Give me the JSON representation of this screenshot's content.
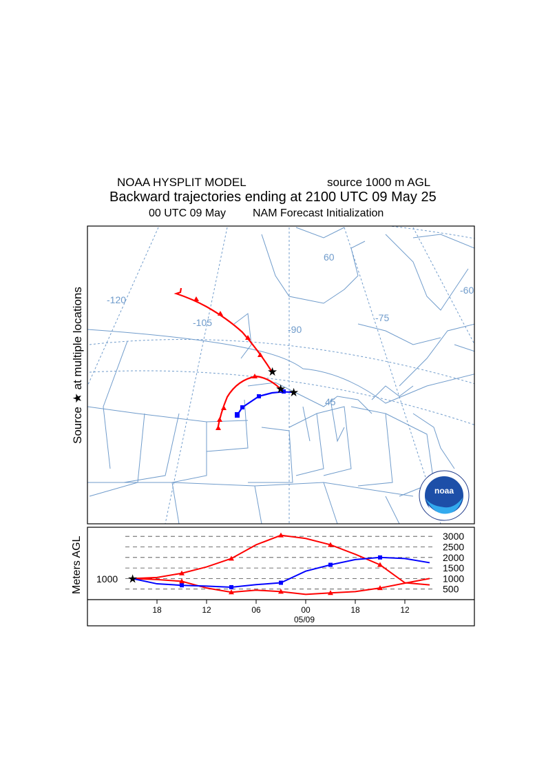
{
  "header": {
    "model_name": "NOAA HYSPLIT MODEL",
    "source_label": "source 1000 m AGL",
    "title": "Backward trajectories ending at 2100 UTC 09 May 25",
    "init_left": "00 UTC 09 May",
    "init_right": "NAM   Forecast Initialization"
  },
  "map": {
    "side_label": "Source ★  at multiple locations",
    "longitude_labels": [
      "-120",
      "-105",
      "-90",
      "-75",
      "-60"
    ],
    "latitude_labels": [
      "60",
      "45"
    ],
    "logo_text": "noaa",
    "colors": {
      "map_lines": "#6f9bcb",
      "trajectory_red": "#ff0000",
      "trajectory_blue": "#0000ff"
    }
  },
  "chart_data": {
    "type": "line",
    "title": "Backward trajectories ending at 2100 UTC 09 May 25",
    "ylabel": "Meters AGL",
    "xlabel": "05/09",
    "x_tick_labels": [
      "18",
      "12",
      "06",
      "00",
      "18",
      "12"
    ],
    "x_hours_back": [
      -3,
      -9,
      -15,
      -21,
      -27,
      -33
    ],
    "y_tick_labels": [
      "3000",
      "2500",
      "2000",
      "1500",
      "1000",
      "500"
    ],
    "y_ticks": [
      3000,
      2500,
      2000,
      1500,
      1000,
      500
    ],
    "ylim": [
      0,
      3200
    ],
    "xlim": [
      0,
      -36
    ],
    "source_height_label": "1000",
    "source_height": 1000,
    "series": [
      {
        "color": "#ff0000",
        "marker": "triangle",
        "x": [
          0,
          -3,
          -6,
          -9,
          -12,
          -15,
          -18,
          -21,
          -24,
          -27,
          -30,
          -33,
          -36
        ],
        "y": [
          1000,
          1050,
          1250,
          1550,
          1950,
          2600,
          3050,
          2900,
          2600,
          2150,
          1650,
          800,
          700
        ]
      },
      {
        "color": "#ff0000",
        "marker": "triangle",
        "x": [
          0,
          -3,
          -6,
          -9,
          -12,
          -15,
          -18,
          -21,
          -24,
          -27,
          -30,
          -33,
          -36
        ],
        "y": [
          1000,
          950,
          870,
          550,
          350,
          450,
          380,
          250,
          320,
          380,
          550,
          780,
          1000
        ]
      },
      {
        "color": "#0000ff",
        "marker": "square",
        "x": [
          0,
          -3,
          -6,
          -9,
          -12,
          -15,
          -18,
          -21,
          -24,
          -27,
          -30,
          -33,
          -36
        ],
        "y": [
          1000,
          750,
          680,
          640,
          590,
          710,
          800,
          1350,
          1650,
          1900,
          2000,
          1950,
          1750
        ]
      }
    ]
  }
}
